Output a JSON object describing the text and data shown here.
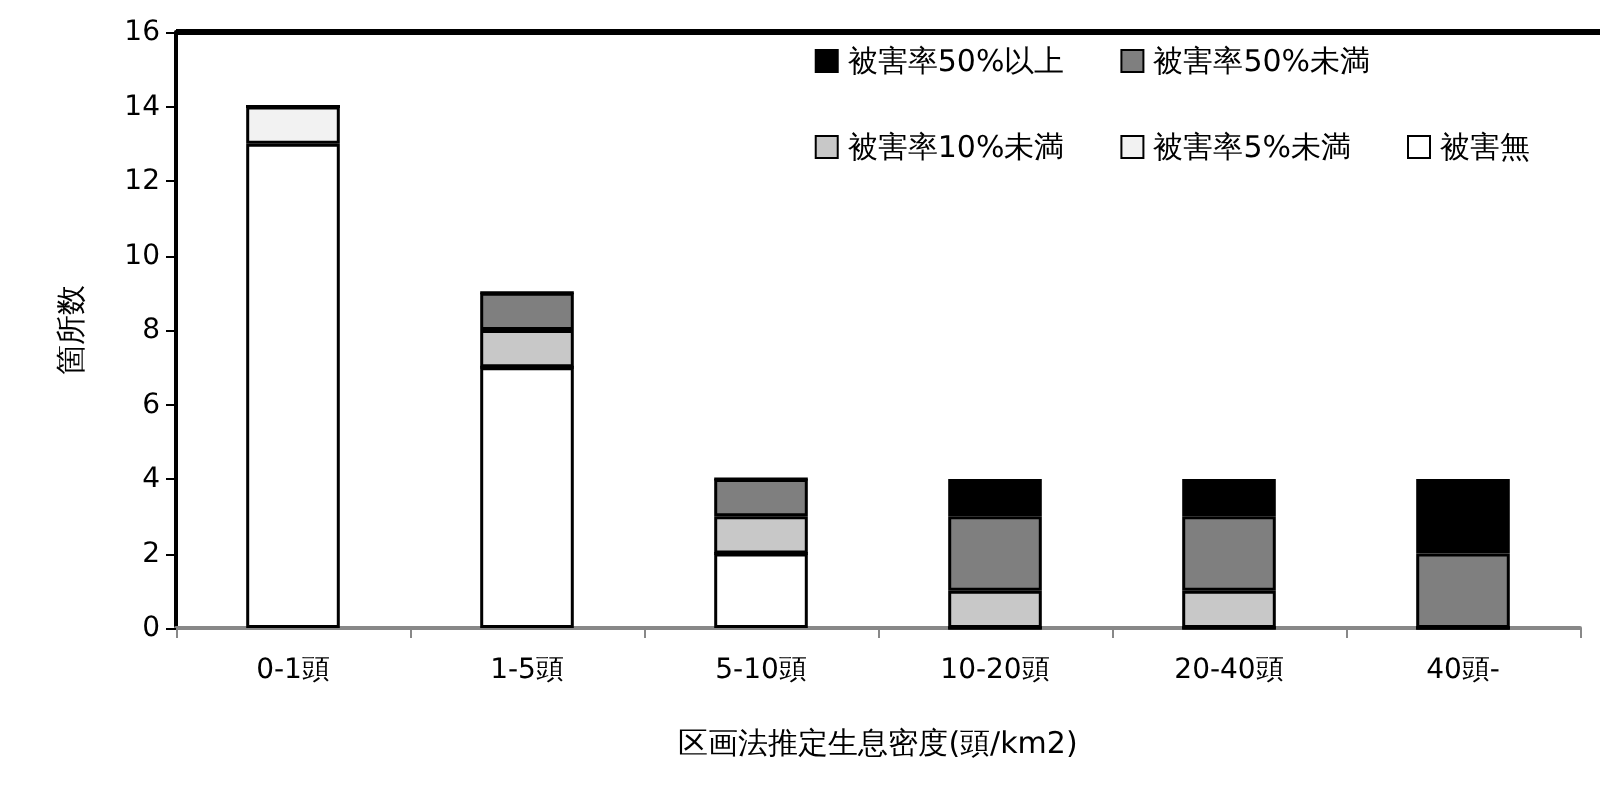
{
  "chart_data": {
    "type": "bar",
    "stacked": true,
    "xlabel": "区画法推定生息密度(頭/km2)",
    "ylabel": "箇所数",
    "categories": [
      "0-1頭",
      "1-5頭",
      "5-10頭",
      "10-20頭",
      "20-40頭",
      "40頭-"
    ],
    "series": [
      {
        "name": "被害無",
        "color": "#ffffff",
        "values": [
          13,
          7,
          2,
          0,
          0,
          0
        ]
      },
      {
        "name": "被害率5%未満",
        "color": "#f2f2f2",
        "values": [
          1,
          0,
          0,
          0,
          0,
          0
        ]
      },
      {
        "name": "被害率10%未満",
        "color": "#c8c8c8",
        "values": [
          0,
          1,
          1,
          1,
          1,
          0
        ]
      },
      {
        "name": "被害率50%未満",
        "color": "#7f7f7f",
        "values": [
          0,
          1,
          1,
          2,
          2,
          2
        ]
      },
      {
        "name": "被害率50%以上",
        "color": "#000000",
        "values": [
          0,
          0,
          0,
          1,
          1,
          2
        ]
      }
    ],
    "ylim": [
      0,
      16
    ],
    "yticks": [
      0,
      2,
      4,
      6,
      8,
      10,
      12,
      14,
      16
    ],
    "grid": false,
    "legend": "top right"
  }
}
